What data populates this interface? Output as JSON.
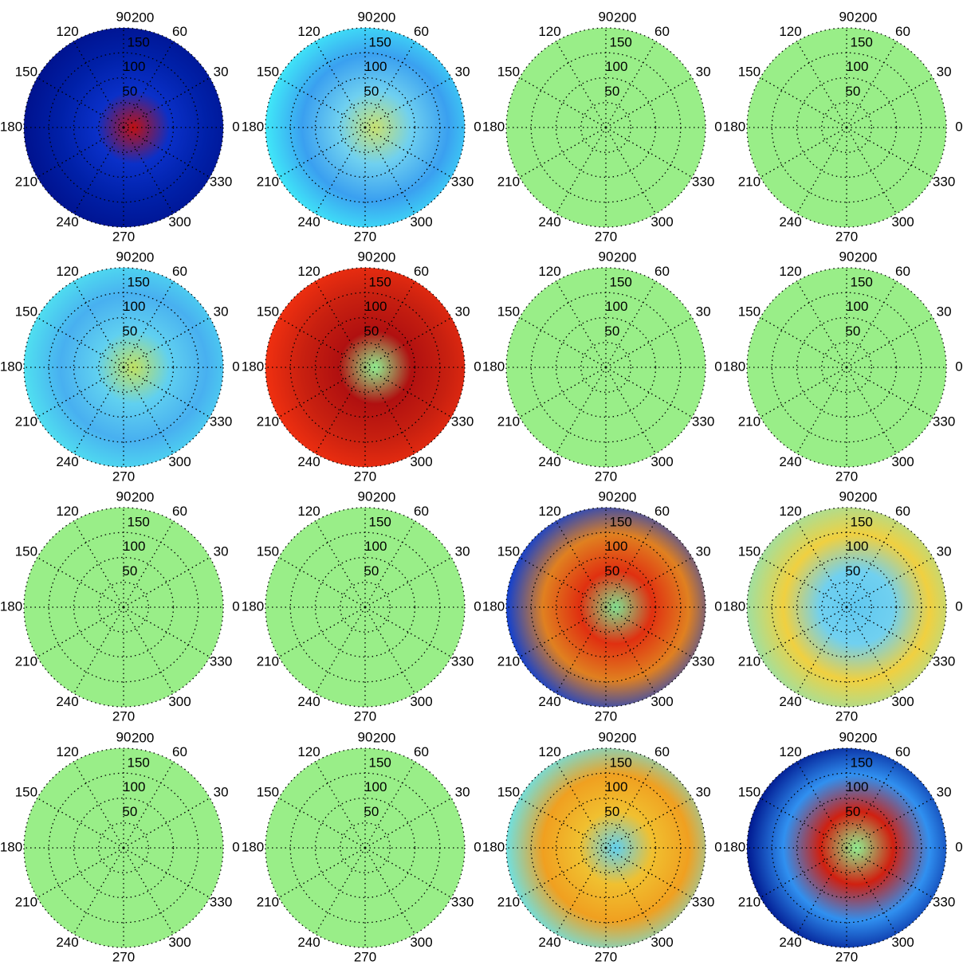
{
  "chart_data": [
    {
      "type": "polar",
      "rlim": [
        0,
        200
      ],
      "rticks": [
        50,
        100,
        150,
        200
      ],
      "thetaticks": [
        0,
        30,
        60,
        90,
        120,
        150,
        180,
        210,
        240,
        270,
        300,
        330
      ],
      "colors": [
        "#c01010",
        "#0a30c8",
        "#0020a8",
        "#00128e"
      ]
    },
    {
      "type": "polar",
      "rlim": [
        0,
        200
      ],
      "rticks": [
        50,
        100,
        150,
        200
      ],
      "thetaticks": [
        0,
        30,
        60,
        90,
        120,
        150,
        180,
        210,
        240,
        270,
        300,
        330
      ],
      "colors": [
        "#c8e070",
        "#6fd0f0",
        "#3aa0f0",
        "#40e8f8"
      ]
    },
    {
      "type": "polar",
      "rlim": [
        0,
        200
      ],
      "rticks": [
        50,
        100,
        150,
        200
      ],
      "thetaticks": [
        0,
        30,
        60,
        90,
        120,
        150,
        180,
        210,
        240,
        270,
        300,
        330
      ],
      "colors": [
        "#99ee88"
      ]
    },
    {
      "type": "polar",
      "rlim": [
        0,
        200
      ],
      "rticks": [
        50,
        100,
        150,
        200
      ],
      "thetaticks": [
        0,
        30,
        60,
        90,
        120,
        150,
        180,
        210,
        240,
        270,
        300,
        330
      ],
      "colors": [
        "#99ee88"
      ]
    },
    {
      "type": "polar",
      "rlim": [
        0,
        200
      ],
      "rticks": [
        50,
        100,
        150,
        200
      ],
      "thetaticks": [
        0,
        30,
        60,
        90,
        120,
        150,
        180,
        210,
        240,
        270,
        300,
        330
      ],
      "colors": [
        "#c0e060",
        "#60d0f0",
        "#48b0f0",
        "#50e0f0"
      ]
    },
    {
      "type": "polar",
      "rlim": [
        0,
        200
      ],
      "rticks": [
        50,
        100,
        150,
        200
      ],
      "thetaticks": [
        0,
        30,
        60,
        90,
        120,
        150,
        180,
        210,
        240,
        270,
        300,
        330
      ],
      "colors": [
        "#90ee90",
        "#b01010",
        "#c82010",
        "#f03010"
      ]
    },
    {
      "type": "polar",
      "rlim": [
        0,
        200
      ],
      "rticks": [
        50,
        100,
        150,
        200
      ],
      "thetaticks": [
        0,
        30,
        60,
        90,
        120,
        150,
        180,
        210,
        240,
        270,
        300,
        330
      ],
      "colors": [
        "#99ee88"
      ]
    },
    {
      "type": "polar",
      "rlim": [
        0,
        200
      ],
      "rticks": [
        50,
        100,
        150,
        200
      ],
      "thetaticks": [
        0,
        30,
        60,
        90,
        120,
        150,
        180,
        210,
        240,
        270,
        300,
        330
      ],
      "colors": [
        "#99ee88"
      ]
    },
    {
      "type": "polar",
      "rlim": [
        0,
        200
      ],
      "rticks": [
        50,
        100,
        150,
        200
      ],
      "thetaticks": [
        0,
        30,
        60,
        90,
        120,
        150,
        180,
        210,
        240,
        270,
        300,
        330
      ],
      "colors": [
        "#99ee88"
      ]
    },
    {
      "type": "polar",
      "rlim": [
        0,
        200
      ],
      "rticks": [
        50,
        100,
        150,
        200
      ],
      "thetaticks": [
        0,
        30,
        60,
        90,
        120,
        150,
        180,
        210,
        240,
        270,
        300,
        330
      ],
      "colors": [
        "#99ee88"
      ]
    },
    {
      "type": "polar",
      "rlim": [
        0,
        200
      ],
      "rticks": [
        50,
        100,
        150,
        200
      ],
      "thetaticks": [
        0,
        30,
        60,
        90,
        120,
        150,
        180,
        210,
        240,
        270,
        300,
        330
      ],
      "colors": [
        "#80e090",
        "#e03010",
        "#e08020",
        "#1040d0"
      ]
    },
    {
      "type": "polar",
      "rlim": [
        0,
        200
      ],
      "rticks": [
        50,
        100,
        150,
        200
      ],
      "thetaticks": [
        0,
        30,
        60,
        90,
        120,
        150,
        180,
        210,
        240,
        270,
        300,
        330
      ],
      "colors": [
        "#60c8f0",
        "#70d0f0",
        "#f0d040",
        "#a0e0a0"
      ]
    },
    {
      "type": "polar",
      "rlim": [
        0,
        200
      ],
      "rticks": [
        50,
        100,
        150,
        200
      ],
      "thetaticks": [
        0,
        30,
        60,
        90,
        120,
        150,
        180,
        210,
        240,
        270,
        300,
        330
      ],
      "colors": [
        "#99ee88"
      ]
    },
    {
      "type": "polar",
      "rlim": [
        0,
        200
      ],
      "rticks": [
        50,
        100,
        150,
        200
      ],
      "thetaticks": [
        0,
        30,
        60,
        90,
        120,
        150,
        180,
        210,
        240,
        270,
        300,
        330
      ],
      "colors": [
        "#99ee88"
      ]
    },
    {
      "type": "polar",
      "rlim": [
        0,
        200
      ],
      "rticks": [
        50,
        100,
        150,
        200
      ],
      "thetaticks": [
        0,
        30,
        60,
        90,
        120,
        150,
        180,
        210,
        240,
        270,
        300,
        330
      ],
      "colors": [
        "#60d0f0",
        "#f0c030",
        "#f0a020",
        "#70e0e0"
      ]
    },
    {
      "type": "polar",
      "rlim": [
        0,
        200
      ],
      "rticks": [
        50,
        100,
        150,
        200
      ],
      "thetaticks": [
        0,
        30,
        60,
        90,
        120,
        150,
        180,
        210,
        240,
        270,
        300,
        330
      ],
      "colors": [
        "#90ee90",
        "#d02010",
        "#3090f0",
        "#001890"
      ]
    }
  ]
}
